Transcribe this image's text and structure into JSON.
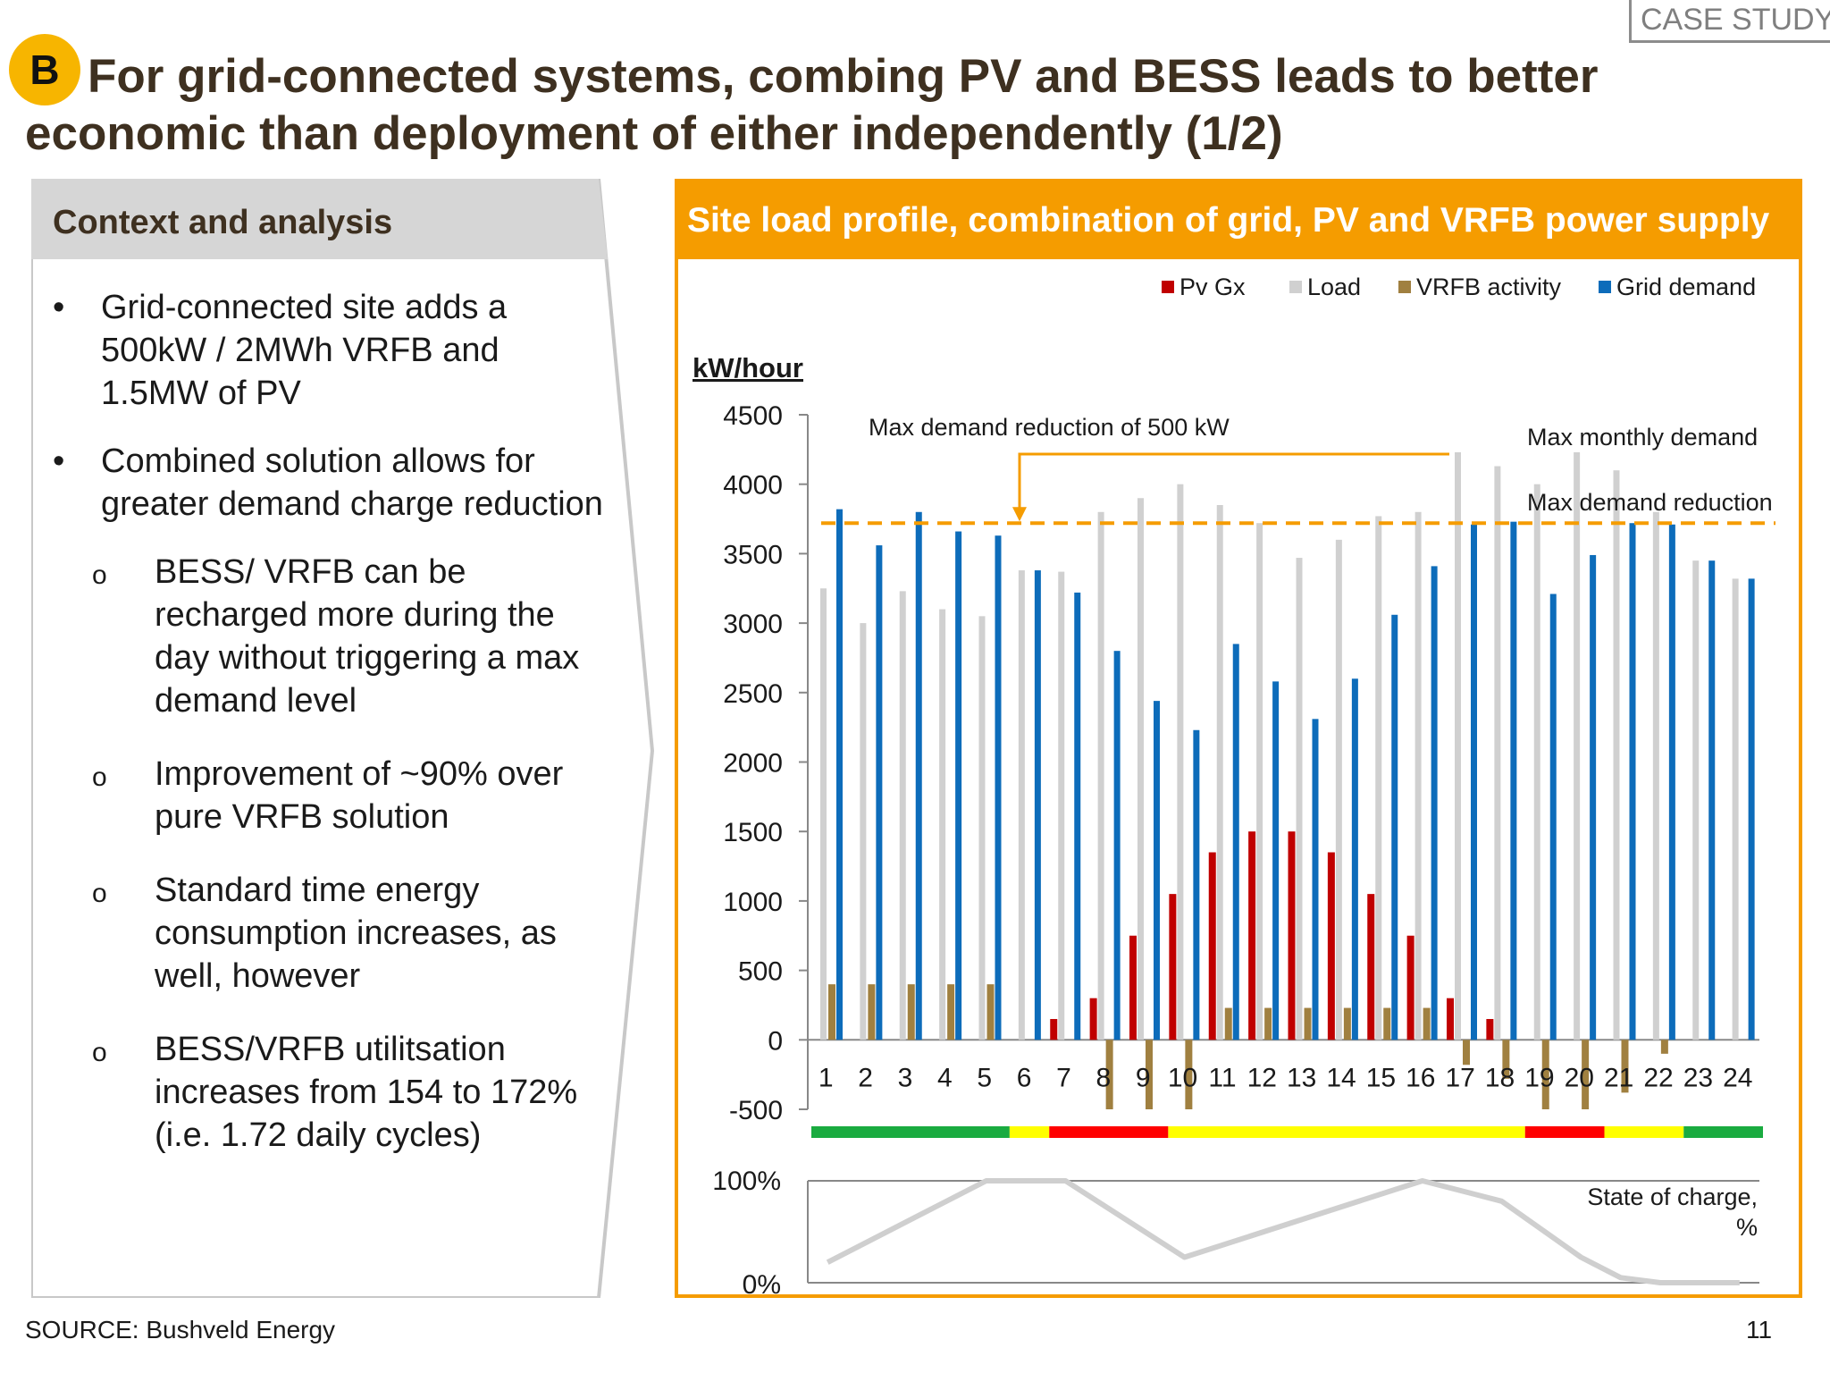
{
  "case_study_label": "CASE STUDY",
  "badge_letter": "B",
  "title": "For grid-connected systems, combing PV and BESS leads to better economic than deployment of either independently (1/2)",
  "left": {
    "header": "Context and analysis",
    "bullets": [
      {
        "mark": "•",
        "text": "Grid-connected site adds a 500kW / 2MWh VRFB and 1.5MW of PV"
      },
      {
        "mark": "•",
        "text": "Combined solution allows for greater demand charge reduction"
      }
    ],
    "sub_bullets": [
      {
        "mark": "o",
        "text": "BESS/ VRFB can be recharged more during the day without triggering a max demand level"
      },
      {
        "mark": "o",
        "text": "Improvement of ~90% over pure VRFB solution"
      },
      {
        "mark": "o",
        "text": "Standard time energy consumption increases, as well, however"
      },
      {
        "mark": "o",
        "text": "BESS/VRFB utilitsation increases from 154 to 172% (i.e. 1.72 daily cycles)"
      }
    ]
  },
  "source": "SOURCE: Bushveld Energy",
  "page_number": "11",
  "chart_data": {
    "type": "bar",
    "title": "Site load profile, combination of grid, PV and VRFB power supply",
    "ylabel": "kW/hour",
    "ylim": [
      -500,
      4500
    ],
    "yticks": [
      4500,
      4000,
      3500,
      3000,
      2500,
      2000,
      1500,
      1000,
      500,
      0,
      -500
    ],
    "categories": [
      "1",
      "2",
      "3",
      "4",
      "5",
      "6",
      "7",
      "8",
      "9",
      "10",
      "11",
      "12",
      "13",
      "14",
      "15",
      "16",
      "17",
      "18",
      "19",
      "20",
      "21",
      "22",
      "23",
      "24"
    ],
    "legend_position": "top-right",
    "series": [
      {
        "name": "Pv Gx",
        "color": "#c00000",
        "values": [
          0,
          0,
          0,
          0,
          0,
          0,
          150,
          300,
          750,
          1050,
          1350,
          1500,
          1500,
          1350,
          1050,
          750,
          300,
          150,
          0,
          0,
          0,
          0,
          0,
          0
        ]
      },
      {
        "name": "Load",
        "color": "#d0d0d0",
        "values": [
          3250,
          3000,
          3230,
          3100,
          3050,
          3380,
          3370,
          3800,
          3900,
          4000,
          3850,
          3720,
          3470,
          3600,
          3770,
          3800,
          4230,
          4130,
          4000,
          4230,
          4100,
          3800,
          3450,
          3320
        ]
      },
      {
        "name": "VRFB activity",
        "color": "#a08040",
        "values": [
          400,
          400,
          400,
          400,
          400,
          0,
          0,
          -500,
          -500,
          -500,
          230,
          230,
          230,
          230,
          230,
          230,
          -180,
          -280,
          -500,
          -500,
          -380,
          -100,
          0,
          0
        ]
      },
      {
        "name": "Grid demand",
        "color": "#0d6cba",
        "values": [
          3820,
          3560,
          3800,
          3660,
          3630,
          3380,
          3220,
          2800,
          2440,
          2230,
          2850,
          2580,
          2310,
          2600,
          3060,
          3410,
          3710,
          3730,
          3210,
          3490,
          3720,
          3710,
          3450,
          3320
        ]
      }
    ],
    "reference_line": {
      "label": "Max demand reduction",
      "value": 3720,
      "color": "#f59c00"
    },
    "annotations": {
      "max_demand_reduction_500": "Max demand reduction of 500 kW",
      "max_monthly_demand": "Max monthly demand"
    },
    "tariff_bar": [
      {
        "color": "#1aab40",
        "from": 1,
        "to": 6
      },
      {
        "color": "#ffff00",
        "from": 6,
        "to": 7
      },
      {
        "color": "#ff0000",
        "from": 7,
        "to": 10
      },
      {
        "color": "#ffff00",
        "from": 10,
        "to": 19
      },
      {
        "color": "#ff0000",
        "from": 19,
        "to": 21
      },
      {
        "color": "#ffff00",
        "from": 21,
        "to": 23
      },
      {
        "color": "#1aab40",
        "from": 23,
        "to": 25
      }
    ],
    "soc": {
      "label": "State of charge, %",
      "ylim_labels": [
        "100%",
        "0%"
      ],
      "points": [
        [
          1,
          20
        ],
        [
          5,
          100
        ],
        [
          7,
          100
        ],
        [
          10,
          25
        ],
        [
          16,
          100
        ],
        [
          17,
          90
        ],
        [
          18,
          80
        ],
        [
          20,
          25
        ],
        [
          21,
          5
        ],
        [
          22,
          0
        ],
        [
          24,
          0
        ]
      ]
    }
  }
}
